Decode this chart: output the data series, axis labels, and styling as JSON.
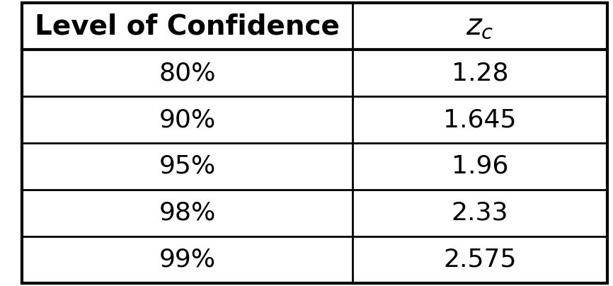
{
  "col1_header": "Level of Confidence",
  "col2_header": "z_c",
  "rows": [
    [
      "80%",
      "1.28"
    ],
    [
      "90%",
      "1.645"
    ],
    [
      "95%",
      "1.96"
    ],
    [
      "98%",
      "2.33"
    ],
    [
      "99%",
      "2.575"
    ]
  ],
  "bg_color": "#ffffff",
  "text_color": "#000000",
  "border_color": "#000000",
  "header_font_size": 28,
  "cell_font_size": 26,
  "fig_width": 8.66,
  "fig_height": 4.04
}
